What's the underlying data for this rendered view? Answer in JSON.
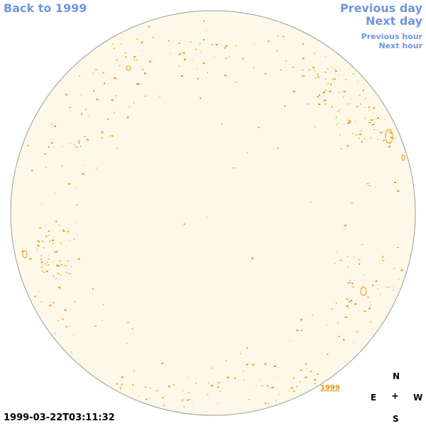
{
  "nav": {
    "back_label": "Back to 1999",
    "prev_day_label": "Previous day",
    "next_day_label": "Next day",
    "prev_hour_label": "Previous hour",
    "next_hour_label": "Next hour"
  },
  "timestamp": "1999-03-22T03:11:32",
  "year_link": "1999",
  "compass": {
    "n": "N",
    "e": "E",
    "center": "+",
    "w": "W",
    "s": "S"
  },
  "colors": {
    "disk_fill": "#fdf8e8",
    "disk_stroke": "#9a9a9a",
    "feature": "#e8960c",
    "link": "#6f96e0"
  }
}
